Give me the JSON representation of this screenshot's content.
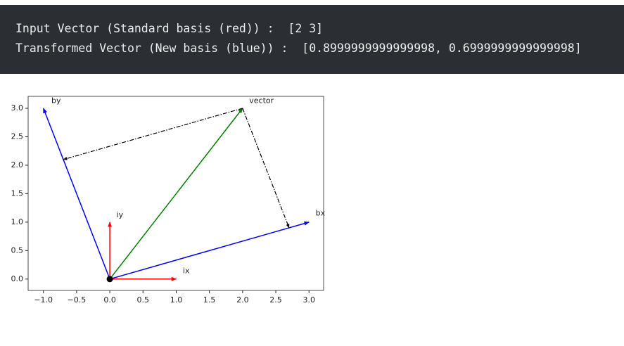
{
  "output": {
    "lines": [
      "Input Vector (Standard basis (red)) :  [2 3]",
      "Transformed Vector (New basis (blue)) :  [0.8999999999999998, 0.6999999999999998]"
    ]
  },
  "chart_data": {
    "type": "vectors",
    "xlim": [
      -1.23,
      3.22
    ],
    "ylim": [
      -0.2,
      3.21
    ],
    "xticks": [
      {
        "value": -1,
        "label": "−1.0"
      },
      {
        "value": -0.5,
        "label": "−0.5"
      },
      {
        "value": 0,
        "label": "0.0"
      },
      0.5,
      {
        "value": 1,
        "label": "1.0"
      },
      1.5,
      {
        "value": 2,
        "label": "2.0"
      },
      2.5,
      {
        "value": 3,
        "label": "3.0"
      }
    ],
    "yticks": [
      {
        "value": 0,
        "label": "0.0"
      },
      0.5,
      {
        "value": 1,
        "label": "1.0"
      },
      1.5,
      {
        "value": 2,
        "label": "2.0"
      },
      2.5,
      {
        "value": 3,
        "label": "3.0"
      }
    ],
    "vectors": [
      {
        "start": [
          0,
          0
        ],
        "end": [
          1,
          0
        ],
        "color": "red",
        "style": "solid"
      },
      {
        "start": [
          0,
          0
        ],
        "end": [
          0,
          1
        ],
        "color": "red",
        "style": "solid"
      },
      {
        "start": [
          0,
          0
        ],
        "end": [
          3,
          1
        ],
        "color": "blue",
        "style": "solid"
      },
      {
        "start": [
          0,
          0
        ],
        "end": [
          -1,
          3
        ],
        "color": "blue",
        "style": "solid"
      },
      {
        "start": [
          0,
          0
        ],
        "end": [
          2,
          3
        ],
        "color": "green",
        "style": "solid"
      },
      {
        "start": [
          2,
          3
        ],
        "end": [
          2.7,
          0.9
        ],
        "color": "black",
        "style": "dashdot"
      },
      {
        "start": [
          2,
          3
        ],
        "end": [
          -0.7,
          2.1
        ],
        "color": "black",
        "style": "dashdot"
      }
    ],
    "points": [
      {
        "x": 0,
        "y": 0,
        "color": "black"
      }
    ],
    "annotations": [
      {
        "text": "ix",
        "x": 1.1,
        "y": 0.14
      },
      {
        "text": "iy",
        "x": 0.1,
        "y": 1.12
      },
      {
        "text": "bx",
        "x": 3.1,
        "y": 1.15
      },
      {
        "text": "by",
        "x": -0.88,
        "y": 3.13
      },
      {
        "text": "vector",
        "x": 2.1,
        "y": 3.13
      }
    ]
  }
}
